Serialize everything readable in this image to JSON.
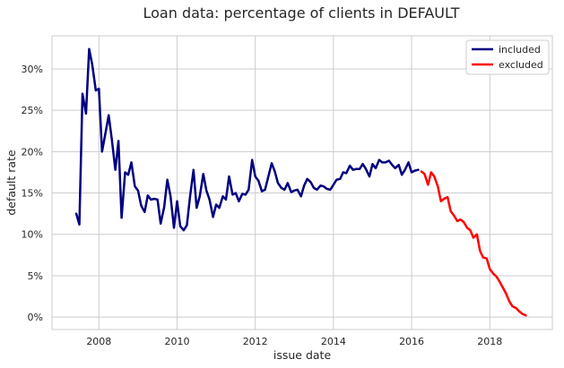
{
  "chart_data": {
    "type": "line",
    "title": "Loan data: percentage of clients in DEFAULT",
    "xlabel": "issue date",
    "ylabel": "default rate",
    "xlim": [
      2006.8,
      2019.6
    ],
    "ylim": [
      -1.5,
      34.0
    ],
    "x_ticks": [
      2008,
      2010,
      2012,
      2014,
      2016,
      2018
    ],
    "x_tick_labels": [
      "2008",
      "2010",
      "2012",
      "2014",
      "2016",
      "2018"
    ],
    "y_ticks": [
      0,
      5,
      10,
      15,
      20,
      25,
      30
    ],
    "y_tick_labels": [
      "0%",
      "5%",
      "10%",
      "15%",
      "20%",
      "25%",
      "30%"
    ],
    "grid": true,
    "legend_position": "top-right",
    "series": [
      {
        "name": "included",
        "color": "#000080",
        "x": [
          2007.42,
          2007.5,
          2007.58,
          2007.67,
          2007.75,
          2007.83,
          2007.92,
          2008.0,
          2008.08,
          2008.17,
          2008.25,
          2008.33,
          2008.42,
          2008.5,
          2008.58,
          2008.67,
          2008.75,
          2008.83,
          2008.92,
          2009.0,
          2009.08,
          2009.17,
          2009.25,
          2009.33,
          2009.42,
          2009.5,
          2009.58,
          2009.67,
          2009.75,
          2009.83,
          2009.92,
          2010.0,
          2010.08,
          2010.17,
          2010.25,
          2010.33,
          2010.42,
          2010.5,
          2010.58,
          2010.67,
          2010.75,
          2010.83,
          2010.92,
          2011.0,
          2011.08,
          2011.17,
          2011.25,
          2011.33,
          2011.42,
          2011.5,
          2011.58,
          2011.67,
          2011.75,
          2011.83,
          2011.92,
          2012.0,
          2012.08,
          2012.17,
          2012.25,
          2012.33,
          2012.42,
          2012.5,
          2012.58,
          2012.67,
          2012.75,
          2012.83,
          2012.92,
          2013.0,
          2013.08,
          2013.17,
          2013.25,
          2013.33,
          2013.42,
          2013.5,
          2013.58,
          2013.67,
          2013.75,
          2013.83,
          2013.92,
          2014.0,
          2014.08,
          2014.17,
          2014.25,
          2014.33,
          2014.42,
          2014.5,
          2014.58,
          2014.67,
          2014.75,
          2014.83,
          2014.92,
          2015.0,
          2015.08,
          2015.17,
          2015.25,
          2015.33,
          2015.42,
          2015.5,
          2015.58,
          2015.67,
          2015.75,
          2015.83,
          2015.92,
          2016.0,
          2016.08,
          2016.17
        ],
        "y": [
          12.5,
          11.2,
          27.0,
          24.6,
          32.4,
          30.5,
          27.4,
          27.6,
          20.0,
          22.3,
          24.4,
          21.5,
          17.8,
          21.3,
          12.0,
          17.5,
          17.2,
          18.7,
          15.8,
          15.3,
          13.5,
          12.7,
          14.7,
          14.2,
          14.3,
          14.2,
          11.3,
          13.3,
          16.6,
          14.7,
          10.8,
          14.0,
          11.0,
          10.5,
          11.1,
          14.5,
          17.8,
          13.2,
          14.6,
          17.3,
          15.3,
          14.2,
          12.1,
          13.6,
          13.2,
          14.6,
          14.2,
          17.0,
          14.8,
          15.0,
          14.0,
          14.9,
          14.8,
          15.4,
          19.0,
          17.0,
          16.5,
          15.2,
          15.4,
          16.9,
          18.6,
          17.6,
          16.2,
          15.6,
          15.4,
          16.2,
          15.1,
          15.3,
          15.4,
          14.6,
          15.9,
          16.7,
          16.3,
          15.6,
          15.4,
          15.9,
          15.8,
          15.5,
          15.4,
          16.0,
          16.6,
          16.7,
          17.5,
          17.4,
          18.3,
          17.8,
          17.9,
          17.9,
          18.5,
          17.9,
          17.0,
          18.5,
          18.0,
          19.0,
          18.7,
          18.7,
          18.9,
          18.4,
          18.0,
          18.4,
          17.2,
          17.8,
          18.7,
          17.5,
          17.7,
          17.8
        ]
      },
      {
        "name": "excluded",
        "color": "#ff0000",
        "x": [
          2016.25,
          2016.33,
          2016.42,
          2016.5,
          2016.58,
          2016.67,
          2016.75,
          2016.83,
          2016.92,
          2017.0,
          2017.08,
          2017.17,
          2017.25,
          2017.33,
          2017.42,
          2017.5,
          2017.58,
          2017.67,
          2017.75,
          2017.83,
          2017.92,
          2018.0,
          2018.08,
          2018.17,
          2018.25,
          2018.33,
          2018.42,
          2018.5,
          2018.58,
          2018.67,
          2018.75,
          2018.83,
          2018.92
        ],
        "y": [
          17.6,
          17.3,
          16.0,
          17.5,
          17.0,
          15.8,
          14.0,
          14.3,
          14.5,
          12.8,
          12.3,
          11.6,
          11.8,
          11.5,
          10.8,
          10.5,
          9.6,
          10.0,
          8.0,
          7.2,
          7.1,
          5.8,
          5.3,
          4.9,
          4.3,
          3.6,
          2.8,
          1.9,
          1.3,
          1.1,
          0.7,
          0.4,
          0.2
        ]
      }
    ]
  }
}
